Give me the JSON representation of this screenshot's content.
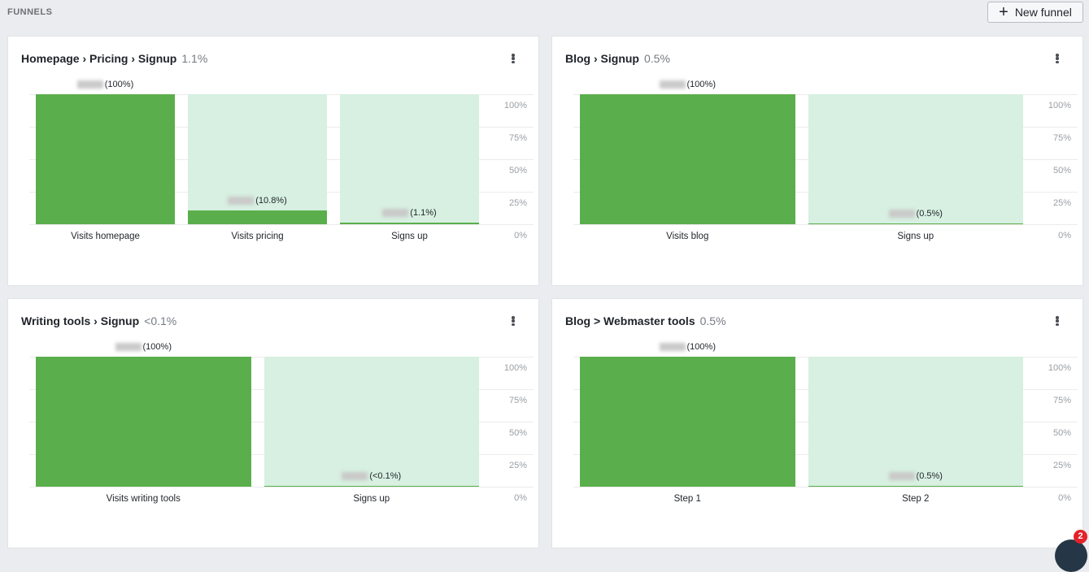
{
  "header": {
    "title": "FUNNELS",
    "new_funnel_label": "New funnel"
  },
  "y_ticks": [
    "100%",
    "75%",
    "50%",
    "25%",
    "0%"
  ],
  "funnels": [
    {
      "title": "Homepage › Pricing › Signup",
      "conversion": "1.1%",
      "steps": [
        {
          "label": "Visits homepage",
          "value_pct": 100,
          "pct_label": "(100%)"
        },
        {
          "label": "Visits pricing",
          "value_pct": 10.8,
          "pct_label": "(10.8%)"
        },
        {
          "label": "Signs up",
          "value_pct": 1.1,
          "pct_label": "(1.1%)"
        }
      ]
    },
    {
      "title": "Blog › Signup",
      "conversion": "0.5%",
      "steps": [
        {
          "label": "Visits blog",
          "value_pct": 100,
          "pct_label": "(100%)"
        },
        {
          "label": "Signs up",
          "value_pct": 0.5,
          "pct_label": "(0.5%)"
        }
      ]
    },
    {
      "title": "Writing tools › Signup",
      "conversion": "<0.1%",
      "steps": [
        {
          "label": "Visits writing tools",
          "value_pct": 100,
          "pct_label": "(100%)"
        },
        {
          "label": "Signs up",
          "value_pct": 0.05,
          "pct_label": "(<0.1%)"
        }
      ]
    },
    {
      "title": "Blog > Webmaster tools",
      "conversion": "0.5%",
      "steps": [
        {
          "label": "Step 1",
          "value_pct": 100,
          "pct_label": "(100%)"
        },
        {
          "label": "Step 2",
          "value_pct": 0.5,
          "pct_label": "(0.5%)"
        }
      ]
    }
  ],
  "colors": {
    "bar_fill": "#5aaf4c",
    "bar_background": "#d7f0e1",
    "badge": "#e3222b"
  },
  "chat": {
    "badge_count": "2"
  }
}
